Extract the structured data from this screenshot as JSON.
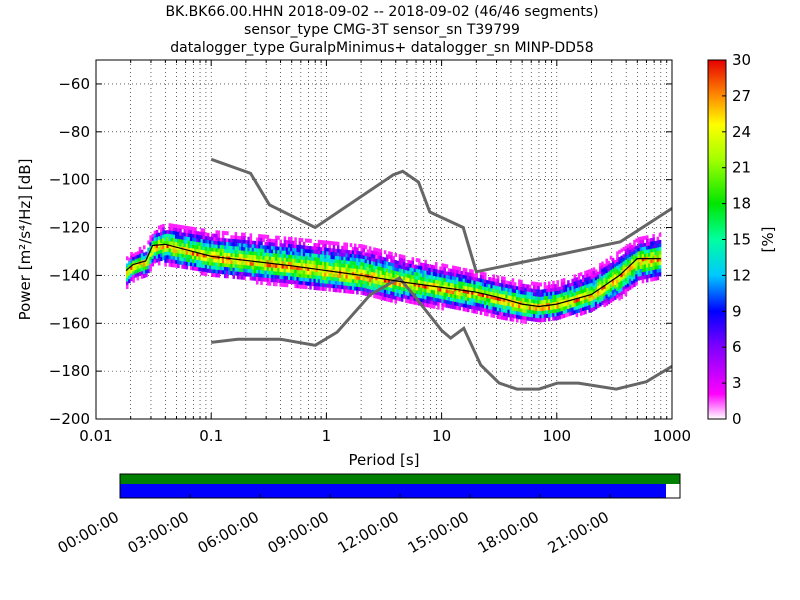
{
  "title_lines": [
    "BK.BK66.00.HHN   2018-09-02 -- 2018-09-02  (46/46 segments)",
    "sensor_type CMG-3T sensor_sn T39799",
    "datalogger_type GuralpMinimus+ datalogger_sn MINP-DD58"
  ],
  "chart_data": {
    "type": "heatmap",
    "xlabel": "Period [s]",
    "ylabel": "Power [m²/s⁴/Hz] [dB]",
    "xscale": "log",
    "xlim": [
      0.01,
      1000
    ],
    "ylim": [
      -200,
      -50
    ],
    "x_ticks": [
      0.01,
      0.1,
      1,
      10,
      100,
      1000
    ],
    "x_tick_labels": [
      "0.01",
      "0.1",
      "1",
      "10",
      "100",
      "1000"
    ],
    "y_ticks": [
      -200,
      -180,
      -160,
      -140,
      -120,
      -100,
      -80,
      -60
    ],
    "y_tick_labels": [
      "−200",
      "−180",
      "−160",
      "−140",
      "−120",
      "−100",
      "−80",
      "−60"
    ],
    "grid": "dotted",
    "colorbar": {
      "label": "[%]",
      "range": [
        0,
        30
      ],
      "ticks": [
        0,
        3,
        6,
        9,
        12,
        15,
        18,
        21,
        24,
        27,
        30
      ],
      "colormap": "pqlx"
    },
    "noise_model_high": [
      [
        0.1,
        -91.5
      ],
      [
        0.22,
        -97.4
      ],
      [
        0.32,
        -110.5
      ],
      [
        0.8,
        -120
      ],
      [
        3.8,
        -98
      ],
      [
        4.6,
        -96.5
      ],
      [
        6.3,
        -101
      ],
      [
        7.9,
        -113.5
      ],
      [
        15.4,
        -120
      ],
      [
        20,
        -138.5
      ],
      [
        354.8,
        -126
      ],
      [
        1000,
        -112
      ]
    ],
    "noise_model_low": [
      [
        0.1,
        -168
      ],
      [
        0.17,
        -166.7
      ],
      [
        0.4,
        -166.7
      ],
      [
        0.8,
        -169.2
      ],
      [
        1.24,
        -163.7
      ],
      [
        2.4,
        -148.1
      ],
      [
        4.3,
        -141.1
      ],
      [
        5.9,
        -149
      ],
      [
        10,
        -163
      ],
      [
        12,
        -166.2
      ],
      [
        15.6,
        -162.1
      ],
      [
        21.9,
        -177.5
      ],
      [
        31.6,
        -185
      ],
      [
        45,
        -187.5
      ],
      [
        70,
        -187.5
      ],
      [
        101,
        -185
      ],
      [
        154,
        -185
      ],
      [
        328,
        -187.5
      ],
      [
        600,
        -184.4
      ],
      [
        1000,
        -178
      ]
    ],
    "median_line": [
      [
        0.0182,
        -138
      ],
      [
        0.021,
        -135.5
      ],
      [
        0.027,
        -134
      ],
      [
        0.031,
        -127.5
      ],
      [
        0.04,
        -127
      ],
      [
        0.1,
        -132
      ],
      [
        0.5,
        -136
      ],
      [
        2,
        -140
      ],
      [
        5,
        -143
      ],
      [
        10,
        -145
      ],
      [
        20,
        -147
      ],
      [
        30,
        -149
      ],
      [
        50,
        -152
      ],
      [
        70,
        -153
      ],
      [
        100,
        -152
      ],
      [
        200,
        -148
      ],
      [
        350,
        -140
      ],
      [
        500,
        -133
      ],
      [
        800,
        -133
      ]
    ],
    "spread_upper": [
      [
        0.0182,
        -136
      ],
      [
        0.021,
        -133
      ],
      [
        0.027,
        -131
      ],
      [
        0.031,
        -124
      ],
      [
        0.04,
        -122
      ],
      [
        0.1,
        -125
      ],
      [
        0.5,
        -128
      ],
      [
        2,
        -131
      ],
      [
        5,
        -136
      ],
      [
        10,
        -139
      ],
      [
        20,
        -142
      ],
      [
        30,
        -144
      ],
      [
        50,
        -146
      ],
      [
        70,
        -147
      ],
      [
        100,
        -146
      ],
      [
        200,
        -141
      ],
      [
        350,
        -133
      ],
      [
        500,
        -128
      ],
      [
        800,
        -126
      ]
    ],
    "spread_lower": [
      [
        0.0182,
        -141
      ],
      [
        0.021,
        -138
      ],
      [
        0.027,
        -137
      ],
      [
        0.031,
        -131
      ],
      [
        0.04,
        -132
      ],
      [
        0.1,
        -137
      ],
      [
        0.5,
        -141
      ],
      [
        2,
        -145
      ],
      [
        5,
        -148
      ],
      [
        10,
        -150
      ],
      [
        20,
        -152
      ],
      [
        30,
        -154
      ],
      [
        50,
        -156
      ],
      [
        70,
        -156
      ],
      [
        100,
        -155
      ],
      [
        200,
        -152
      ],
      [
        350,
        -146
      ],
      [
        500,
        -140
      ],
      [
        800,
        -138
      ]
    ]
  },
  "timeline": {
    "tick_labels": [
      "00:00:00",
      "03:00:00",
      "06:00:00",
      "09:00:00",
      "12:00:00",
      "15:00:00",
      "18:00:00",
      "21:00:00"
    ],
    "hours": [
      0,
      3,
      6,
      9,
      12,
      15,
      18,
      21
    ],
    "coverage_top_color": "#008000",
    "coverage_bottom_color": "#0000ff",
    "coverage_top_fraction": 1.0,
    "coverage_bottom_fraction": 0.975
  },
  "colors": {
    "noise_model": "#666666",
    "median": "#000000"
  }
}
